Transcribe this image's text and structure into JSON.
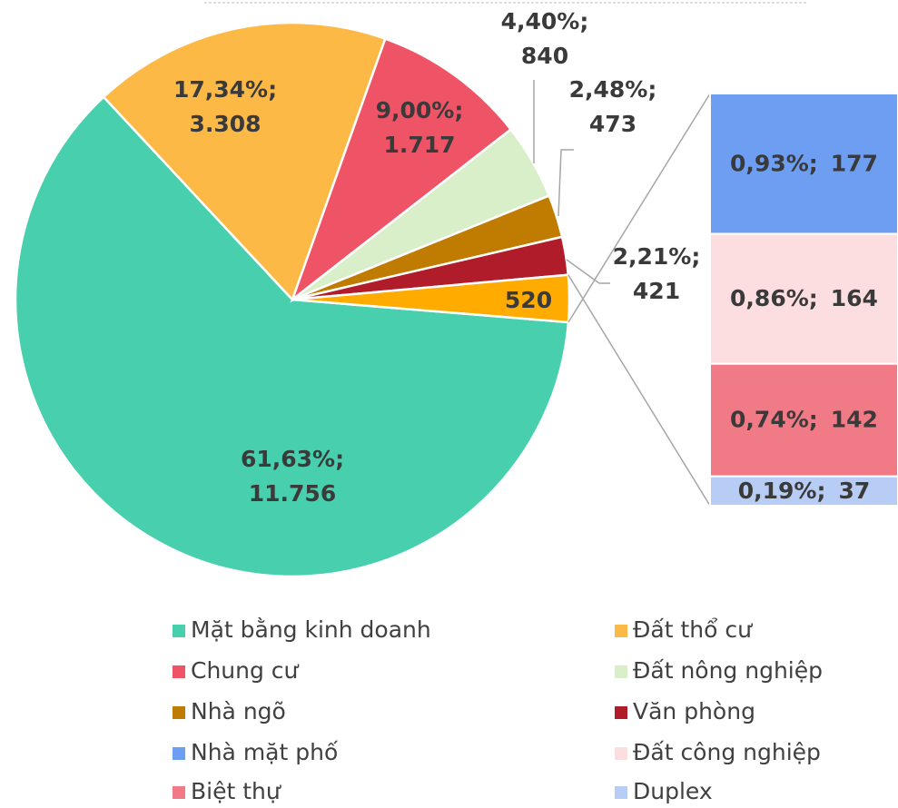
{
  "chart_data": {
    "type": "pie-of-bar",
    "pie": {
      "names": [
        "Mặt bằng kinh doanh",
        "Đất thổ cư",
        "Chung cư",
        "Đất nông nghiệp",
        "Nhà ngõ",
        "Văn phòng",
        null
      ],
      "values": [
        11756,
        3308,
        1717,
        840,
        473,
        421,
        520
      ],
      "colors": [
        "#48cfae",
        "#fdb946",
        "#ef5466",
        "#d9efc9",
        "#c07c00",
        "#b01c2a",
        "#ffab00"
      ],
      "percent_labels": [
        "61,63%;",
        "17,34%;",
        "9,00%;",
        "4,40%;",
        "2,48%;",
        "2,21%;",
        null
      ],
      "value_labels": [
        "11.756",
        "3.308",
        "1.717",
        "840",
        "473",
        "421",
        "520"
      ]
    },
    "bar": {
      "names": [
        "Nhà mặt phố",
        "Đất công nghiệp",
        "Biệt thự",
        "Duplex"
      ],
      "values": [
        177,
        164,
        142,
        37
      ],
      "colors": [
        "#6d9ef1",
        "#fcdde0",
        "#f07a85",
        "#b7cdf5"
      ],
      "percent_labels": [
        "0,93%;",
        "0,86%;",
        "0,74%;",
        "0,19%;"
      ]
    }
  }
}
